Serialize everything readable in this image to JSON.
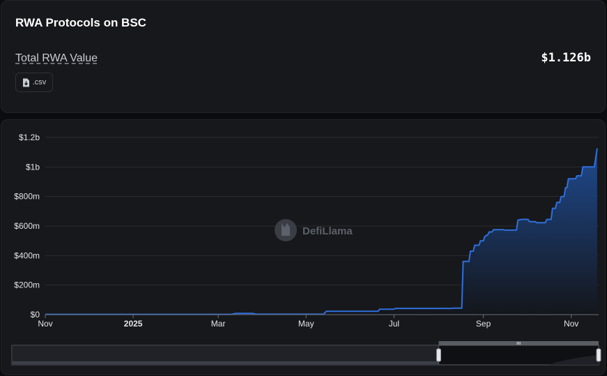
{
  "header": {
    "title": "RWA Protocols on BSC",
    "metric_label": "Total RWA Value",
    "metric_value": "$1.126b",
    "csv_label": ".csv"
  },
  "watermark": {
    "text": "DefiLlama"
  },
  "colors": {
    "line": "#2f6fdc",
    "area_top": "#1f4a8f",
    "area_bottom": "#14161b",
    "grid": "#2a2d33"
  },
  "chart_data": {
    "type": "area",
    "title": "",
    "xlabel": "",
    "ylabel": "",
    "y_ticks": [
      0,
      200,
      400,
      600,
      800,
      1000,
      1200
    ],
    "y_tick_labels": [
      "$0",
      "$200m",
      "$400m",
      "$600m",
      "$800m",
      "$1b",
      "$1.2b"
    ],
    "ylim": [
      0,
      1200
    ],
    "x_range": [
      "2024-11-01",
      "2025-11-20"
    ],
    "x_ticks": [
      {
        "date": "2024-11-01",
        "label": "Nov"
      },
      {
        "date": "2025-01-01",
        "label": "2025"
      },
      {
        "date": "2025-03-01",
        "label": "Mar"
      },
      {
        "date": "2025-05-01",
        "label": "May"
      },
      {
        "date": "2025-07-01",
        "label": "Jul"
      },
      {
        "date": "2025-09-01",
        "label": "Sep"
      },
      {
        "date": "2025-11-01",
        "label": "Nov"
      }
    ],
    "grid": true,
    "series": [
      {
        "points": [
          [
            "2024-11-01",
            2
          ],
          [
            "2025-03-10",
            2
          ],
          [
            "2025-03-13",
            8
          ],
          [
            "2025-03-25",
            8
          ],
          [
            "2025-03-27",
            3
          ],
          [
            "2025-05-13",
            3
          ],
          [
            "2025-05-15",
            22
          ],
          [
            "2025-06-06",
            22
          ],
          [
            "2025-06-07",
            22
          ],
          [
            "2025-06-20",
            22
          ],
          [
            "2025-06-21",
            37
          ],
          [
            "2025-07-01",
            37
          ],
          [
            "2025-07-02",
            42
          ],
          [
            "2025-08-10",
            42
          ],
          [
            "2025-08-11",
            44
          ],
          [
            "2025-08-17",
            44
          ],
          [
            "2025-08-18",
            360
          ],
          [
            "2025-08-22",
            360
          ],
          [
            "2025-08-23",
            430
          ],
          [
            "2025-08-25",
            430
          ],
          [
            "2025-08-26",
            470
          ],
          [
            "2025-08-29",
            470
          ],
          [
            "2025-08-30",
            500
          ],
          [
            "2025-09-01",
            500
          ],
          [
            "2025-09-02",
            530
          ],
          [
            "2025-09-04",
            540
          ],
          [
            "2025-09-05",
            560
          ],
          [
            "2025-09-07",
            560
          ],
          [
            "2025-09-08",
            575
          ],
          [
            "2025-09-15",
            575
          ],
          [
            "2025-09-16",
            572
          ],
          [
            "2025-09-24",
            572
          ],
          [
            "2025-09-25",
            640
          ],
          [
            "2025-09-28",
            645
          ],
          [
            "2025-10-02",
            645
          ],
          [
            "2025-10-03",
            630
          ],
          [
            "2025-10-07",
            630
          ],
          [
            "2025-10-08",
            622
          ],
          [
            "2025-10-14",
            622
          ],
          [
            "2025-10-15",
            645
          ],
          [
            "2025-10-18",
            645
          ],
          [
            "2025-10-19",
            720
          ],
          [
            "2025-10-21",
            720
          ],
          [
            "2025-10-22",
            760
          ],
          [
            "2025-10-24",
            760
          ],
          [
            "2025-10-25",
            800
          ],
          [
            "2025-10-27",
            800
          ],
          [
            "2025-10-28",
            860
          ],
          [
            "2025-10-29",
            860
          ],
          [
            "2025-10-30",
            920
          ],
          [
            "2025-11-04",
            920
          ],
          [
            "2025-11-05",
            940
          ],
          [
            "2025-11-08",
            940
          ],
          [
            "2025-11-09",
            1000
          ],
          [
            "2025-11-17",
            1000
          ],
          [
            "2025-11-19",
            1126
          ]
        ]
      }
    ]
  }
}
